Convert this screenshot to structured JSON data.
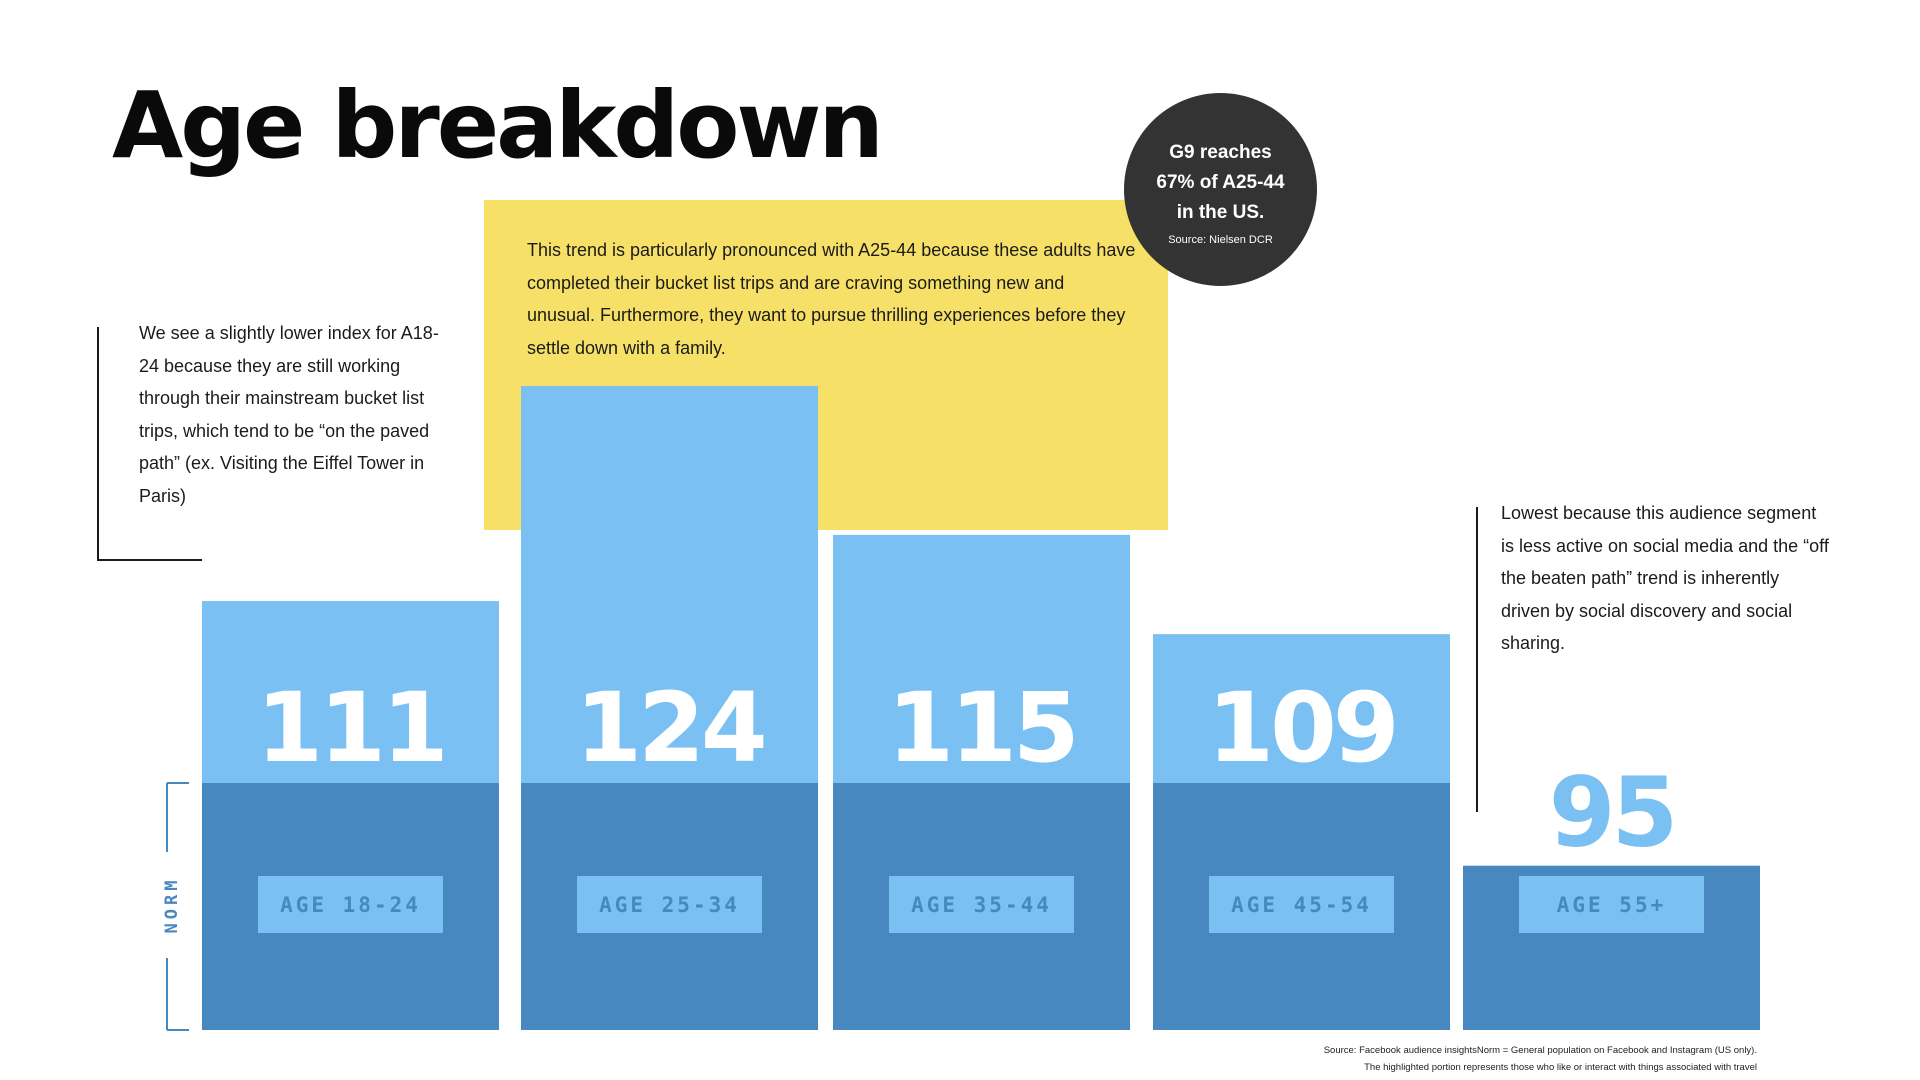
{
  "title": "Age breakdown",
  "callout": {
    "line1": "G9 reaches",
    "line2": "67% of  A25-44",
    "line3": "in the US.",
    "source": "Source: Nielsen DCR"
  },
  "notes": {
    "left": "We see a slightly lower index for A18-24 because they are still working through their mainstream bucket list trips, which tend to be “on the paved path” (ex. Visiting the Eiffel Tower in Paris)",
    "highlight": "This trend is particularly pronounced with A25-44 because these adults have completed their bucket list trips and are craving something new and unusual. Furthermore, they want to pursue thrilling experiences before they settle down with a family.",
    "right": "Lowest because this audience segment is less active on social media and the “off the beaten path” trend is inherently driven by social discovery and social sharing."
  },
  "footer": {
    "line1": "Source: Facebook audience insightsNorm = General population on  Facebook and Instagram (US only).",
    "line2": "The highlighted portion represents those who like or interact with things associated with travel"
  },
  "colors": {
    "index_fill": "#7ac0f3",
    "norm_fill": "#4788c0",
    "label_box": "#7ac0f3",
    "label_text": "#4788c0",
    "value_text": "#ffffff",
    "value_text_below": "#7ac0f3",
    "highlight_box": "#f7e067",
    "callout_circle": "#333333",
    "norm_bracket": "#4788c0"
  },
  "chart_data": {
    "type": "bar",
    "categories": [
      "AGE  18-24",
      "AGE  25-34",
      "AGE  35-44",
      "AGE  45-54",
      "AGE  55+"
    ],
    "values": [
      111,
      124,
      115,
      109,
      95
    ],
    "baseline": 100,
    "baseline_label": "NORM",
    "ylim": [
      0,
      124
    ]
  }
}
